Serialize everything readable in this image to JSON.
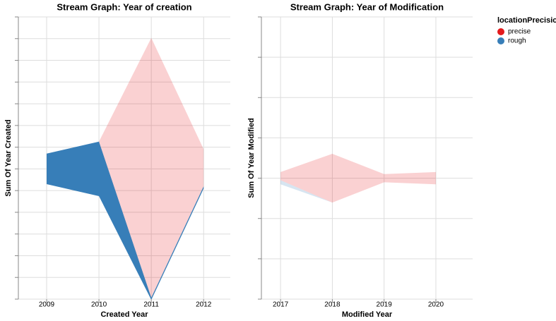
{
  "chart_data": [
    {
      "type": "stream",
      "title": "Stream Graph: Year of creation",
      "x_label": "Created Year",
      "y_label": "Sum Of Year Created",
      "x": [
        2009,
        2010,
        2011,
        2012
      ],
      "xlim": [
        2008.46,
        2012.51
      ],
      "xticks": [
        2009,
        2010,
        2011,
        2012
      ],
      "ylim": [
        -120000,
        140000
      ],
      "yticks": [
        -120000,
        -100000,
        -80000,
        -60000,
        -40000,
        -20000,
        0,
        20000,
        40000,
        60000,
        80000,
        100000,
        120000,
        140000
      ],
      "grid": true,
      "series": [
        {
          "name": "rough",
          "color": "#377eb8",
          "opacity": 1,
          "values": [
            28126,
            50250,
            2011,
            2012
          ]
        },
        {
          "name": "precise",
          "color": "#e41a1c",
          "opacity": 0.2,
          "values": [
            null,
            0,
            239309,
            34204
          ]
        }
      ]
    },
    {
      "type": "stream",
      "title": "Stream Graph: Year of Modification",
      "x_label": "Modified Year",
      "y_label": "Sum Of Year Modified",
      "x": [
        2017,
        2018,
        2019,
        2020
      ],
      "xlim": [
        2016.63,
        2020.71
      ],
      "xticks": [
        2017,
        2018,
        2019,
        2020
      ],
      "ylim": [
        -60000,
        80000
      ],
      "yticks": [
        -60000,
        -40000,
        -20000,
        0,
        20000,
        40000,
        60000,
        80000
      ],
      "grid": true,
      "series": [
        {
          "name": "rough",
          "color": "#377eb8",
          "opacity": 0.2,
          "values": [
            2017,
            0,
            0,
            0
          ]
        },
        {
          "name": "precise",
          "color": "#e41a1c",
          "opacity": 0.2,
          "values": [
            4034,
            24216,
            4038,
            6060
          ]
        }
      ]
    }
  ],
  "legend": {
    "title": "locationPrecision",
    "entries": [
      "precise",
      "rough"
    ],
    "colors": [
      "#e41a1c",
      "#377eb8"
    ]
  }
}
